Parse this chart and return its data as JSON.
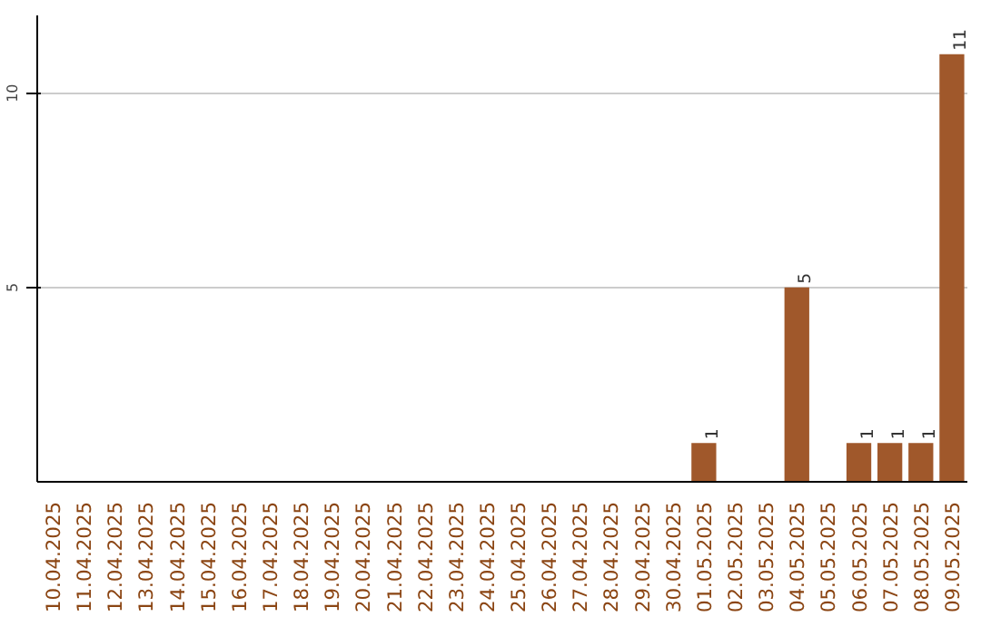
{
  "chart_data": {
    "type": "bar",
    "categories": [
      "10.04.2025",
      "11.04.2025",
      "12.04.2025",
      "13.04.2025",
      "14.04.2025",
      "15.04.2025",
      "16.04.2025",
      "17.04.2025",
      "18.04.2025",
      "19.04.2025",
      "20.04.2025",
      "21.04.2025",
      "22.04.2025",
      "23.04.2025",
      "24.04.2025",
      "25.04.2025",
      "26.04.2025",
      "27.04.2025",
      "28.04.2025",
      "29.04.2025",
      "30.04.2025",
      "01.05.2025",
      "02.05.2025",
      "03.05.2025",
      "04.05.2025",
      "05.05.2025",
      "06.05.2025",
      "07.05.2025",
      "08.05.2025",
      "09.05.2025"
    ],
    "values": [
      0,
      0,
      0,
      0,
      0,
      0,
      0,
      0,
      0,
      0,
      0,
      0,
      0,
      0,
      0,
      0,
      0,
      0,
      0,
      0,
      0,
      1,
      0,
      0,
      5,
      0,
      1,
      1,
      1,
      11
    ],
    "value_labels": [
      null,
      null,
      null,
      null,
      null,
      null,
      null,
      null,
      null,
      null,
      null,
      null,
      null,
      null,
      null,
      null,
      null,
      null,
      null,
      null,
      null,
      "1",
      null,
      null,
      "5",
      null,
      "1",
      "1",
      "1",
      "11"
    ],
    "color": "#a0582b",
    "ylim": [
      0,
      12
    ],
    "yticks": [
      5,
      10
    ],
    "grid": "y"
  }
}
